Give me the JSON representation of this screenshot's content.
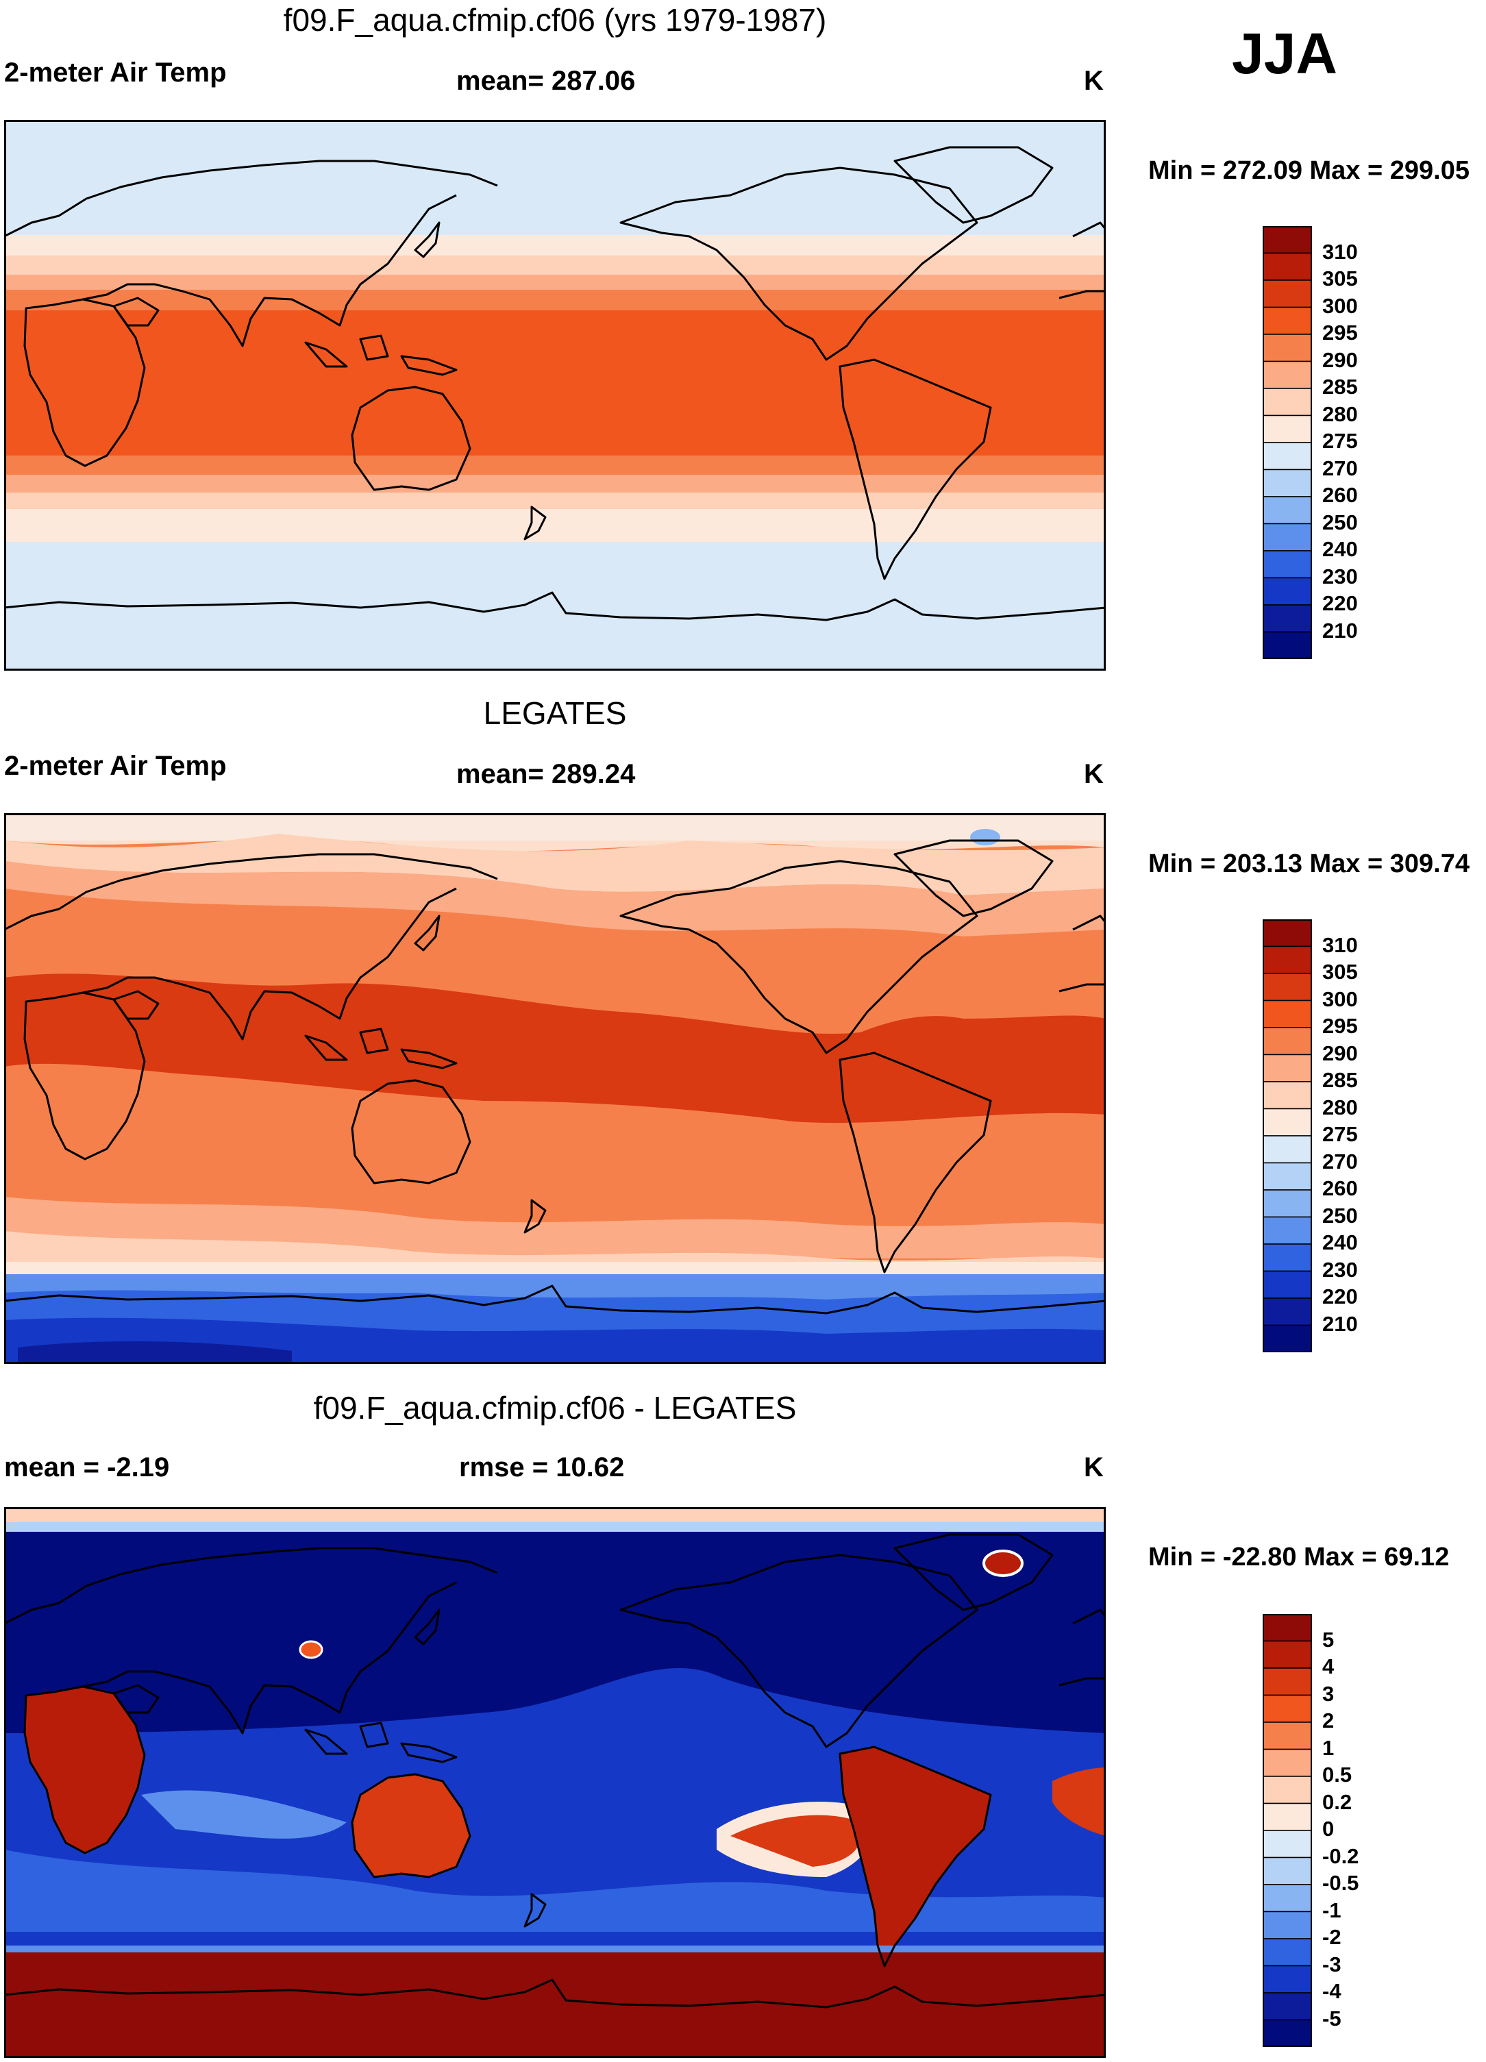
{
  "season": "JJA",
  "panels": [
    {
      "title": "f09.F_aqua.cfmip.cf06 (yrs 1979-1987)",
      "left_label": "2-meter Air Temp",
      "center_label": "mean= 287.06",
      "units": "K",
      "minmax": "Min = 272.09 Max = 299.05",
      "colorbar_labels": [
        "310",
        "305",
        "300",
        "295",
        "290",
        "285",
        "280",
        "275",
        "270",
        "260",
        "250",
        "240",
        "230",
        "220",
        "210"
      ],
      "colorbar_colors": [
        "#8e0b07",
        "#b81d09",
        "#d93a12",
        "#f1561f",
        "#f6804b",
        "#fbab85",
        "#fdd2b8",
        "#fde9dc",
        "#d9e9f8",
        "#b4d2f6",
        "#89b4f2",
        "#5c90ec",
        "#2f63e0",
        "#1638c6",
        "#0c1c9a",
        "#010b7c"
      ]
    },
    {
      "title": "LEGATES",
      "left_label": "2-meter Air Temp",
      "center_label": "mean= 289.24",
      "units": "K",
      "minmax": "Min = 203.13 Max = 309.74",
      "colorbar_labels": [
        "310",
        "305",
        "300",
        "295",
        "290",
        "285",
        "280",
        "275",
        "270",
        "260",
        "250",
        "240",
        "230",
        "220",
        "210"
      ],
      "colorbar_colors": [
        "#8e0b07",
        "#b81d09",
        "#d93a12",
        "#f1561f",
        "#f6804b",
        "#fbab85",
        "#fdd2b8",
        "#fde9dc",
        "#d9e9f8",
        "#b4d2f6",
        "#89b4f2",
        "#5c90ec",
        "#2f63e0",
        "#1638c6",
        "#0c1c9a",
        "#010b7c"
      ]
    },
    {
      "title": "f09.F_aqua.cfmip.cf06 - LEGATES",
      "left_label": "mean =  -2.19",
      "center_label": "rmse =  10.62",
      "units": "K",
      "minmax": "Min = -22.80 Max =  69.12",
      "colorbar_labels": [
        "5",
        "4",
        "3",
        "2",
        "1",
        "0.5",
        "0.2",
        "0",
        "-0.2",
        "-0.5",
        "-1",
        "-2",
        "-3",
        "-4",
        "-5"
      ],
      "colorbar_colors": [
        "#8e0b07",
        "#b81d09",
        "#d93a12",
        "#f1561f",
        "#f6804b",
        "#fbab85",
        "#fdd2b8",
        "#fde9dc",
        "#d9e9f8",
        "#b4d2f6",
        "#89b4f2",
        "#5c90ec",
        "#2f63e0",
        "#1638c6",
        "#0c1c9a",
        "#010b7c"
      ]
    }
  ]
}
